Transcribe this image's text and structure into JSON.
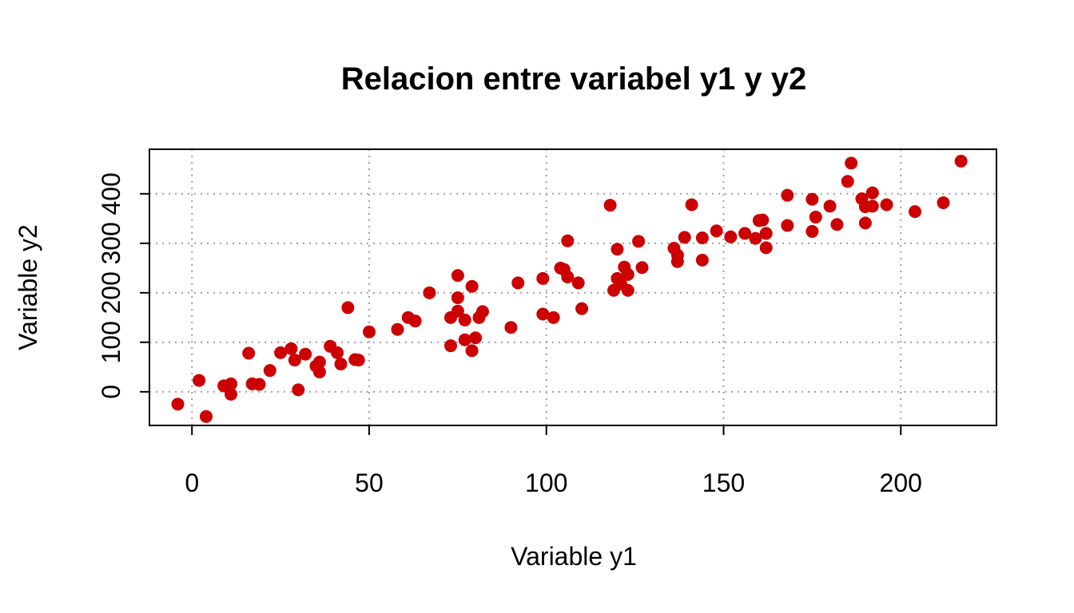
{
  "chart_data": {
    "type": "scatter",
    "title": "Relacion entre variabel y1 y y2",
    "xlabel": "Variable y1",
    "ylabel": "Variable y2",
    "xlim": [
      -12,
      227
    ],
    "ylim": [
      -68,
      490
    ],
    "xticks": [
      0,
      50,
      100,
      150,
      200
    ],
    "yticks": [
      0,
      100,
      200,
      300,
      400
    ],
    "grid": true,
    "point_color": "#cc0000",
    "points": [
      [
        -4,
        -25
      ],
      [
        2,
        23
      ],
      [
        4,
        -50
      ],
      [
        9,
        12
      ],
      [
        11,
        16
      ],
      [
        11,
        -5
      ],
      [
        16,
        78
      ],
      [
        17,
        16
      ],
      [
        19,
        15
      ],
      [
        22,
        43
      ],
      [
        25,
        79
      ],
      [
        28,
        87
      ],
      [
        29,
        64
      ],
      [
        30,
        4
      ],
      [
        32,
        76
      ],
      [
        35,
        52
      ],
      [
        36,
        40
      ],
      [
        36,
        60
      ],
      [
        39,
        92
      ],
      [
        41,
        79
      ],
      [
        42,
        56
      ],
      [
        44,
        170
      ],
      [
        46,
        65
      ],
      [
        47,
        64
      ],
      [
        50,
        121
      ],
      [
        58,
        126
      ],
      [
        61,
        150
      ],
      [
        63,
        143
      ],
      [
        67,
        200
      ],
      [
        73,
        150
      ],
      [
        73,
        93
      ],
      [
        75,
        163
      ],
      [
        75,
        235
      ],
      [
        75,
        190
      ],
      [
        77,
        105
      ],
      [
        77,
        145
      ],
      [
        79,
        83
      ],
      [
        79,
        213
      ],
      [
        80,
        109
      ],
      [
        81,
        150
      ],
      [
        82,
        162
      ],
      [
        90,
        130
      ],
      [
        92,
        220
      ],
      [
        99,
        229
      ],
      [
        99,
        157
      ],
      [
        102,
        150
      ],
      [
        104,
        250
      ],
      [
        105,
        247
      ],
      [
        106,
        305
      ],
      [
        106,
        232
      ],
      [
        109,
        220
      ],
      [
        110,
        168
      ],
      [
        118,
        377
      ],
      [
        119,
        205
      ],
      [
        120,
        229
      ],
      [
        120,
        288
      ],
      [
        121,
        218
      ],
      [
        122,
        252
      ],
      [
        123,
        237
      ],
      [
        123,
        205
      ],
      [
        126,
        304
      ],
      [
        127,
        251
      ],
      [
        136,
        290
      ],
      [
        137,
        263
      ],
      [
        137,
        276
      ],
      [
        139,
        312
      ],
      [
        141,
        378
      ],
      [
        144,
        266
      ],
      [
        144,
        311
      ],
      [
        148,
        325
      ],
      [
        152,
        313
      ],
      [
        156,
        320
      ],
      [
        159,
        310
      ],
      [
        160,
        346
      ],
      [
        161,
        347
      ],
      [
        162,
        291
      ],
      [
        162,
        320
      ],
      [
        168,
        397
      ],
      [
        168,
        336
      ],
      [
        175,
        389
      ],
      [
        175,
        324
      ],
      [
        176,
        353
      ],
      [
        180,
        375
      ],
      [
        182,
        338
      ],
      [
        185,
        425
      ],
      [
        186,
        462
      ],
      [
        189,
        390
      ],
      [
        190,
        374
      ],
      [
        190,
        341
      ],
      [
        192,
        402
      ],
      [
        192,
        375
      ],
      [
        196,
        378
      ],
      [
        204,
        364
      ],
      [
        212,
        382
      ],
      [
        217,
        466
      ]
    ]
  }
}
